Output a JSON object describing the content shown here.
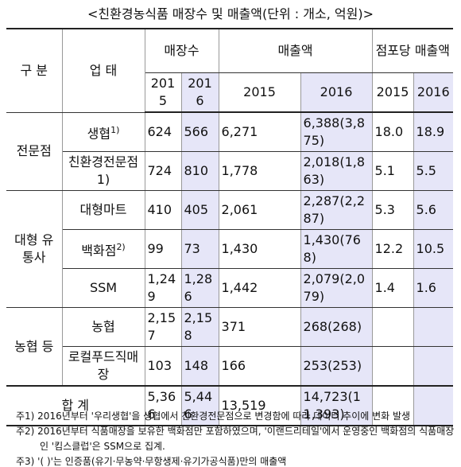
{
  "title": "<친환경농식품 매장수 및 매출액(단위 : 개소, 억원)>",
  "header": {
    "group": "구 분",
    "type": "업 태",
    "stores": "매장수",
    "sales": "매출액",
    "per_store": "점포당 매출액",
    "years": [
      "2015",
      "2016",
      "2015",
      "2016",
      "2015",
      "2016"
    ]
  },
  "groups": [
    {
      "label": "전문점",
      "rows": [
        {
          "name": "생협",
          "note": "1)",
          "cells": [
            "624",
            "566",
            "6,271",
            "6,388(3,875)",
            "18.0",
            "18.9"
          ]
        },
        {
          "name": "친환경전문점1)",
          "cells": [
            "724",
            "810",
            "1,778",
            "2,018(1,863)",
            "5.1",
            "5.5"
          ]
        }
      ]
    },
    {
      "label": "대형 유통사",
      "rows": [
        {
          "name": "대형마트",
          "cells": [
            "410",
            "405",
            "2,061",
            "2,287(2,287)",
            "5.3",
            "5.6"
          ]
        },
        {
          "name": "백화점",
          "note": "2)",
          "cells": [
            "99",
            "73",
            "1,430",
            "1,430(768)",
            "12.2",
            "10.5"
          ]
        },
        {
          "name": "SSM",
          "cells": [
            "1,249",
            "1,286",
            "1,442",
            "2,079(2,079)",
            "1.4",
            "1.6"
          ]
        }
      ]
    },
    {
      "label": "농협 등",
      "rows": [
        {
          "name": "농협",
          "cells": [
            "2,157",
            "2,158",
            "371",
            "268(268)"
          ]
        },
        {
          "name": "로컬푸드직매장",
          "cells": [
            "103",
            "148",
            "166",
            "253(253)"
          ]
        }
      ]
    }
  ],
  "total": {
    "label": "합 계",
    "cells": [
      "5,366",
      "5,446",
      "13,519",
      "14,723(11,393)"
    ]
  },
  "notes": [
    "주1) 2016년부터 '우리생협'을 생협에서 친환경전문점으로 변경함에 따라 데이터 추이에 변화 발생",
    "주2) 2016년부터 식품매장을 보유한 백화점만 포함하였으며, '이랜드리테일'에서 운영중인 백화점의 식품매장인 '킴스클럽'은 SSM으로 집계.",
    "주3) '( )'는 인증품(유기·무농약·무항생제·유기가공식품)만의 매출액"
  ]
}
